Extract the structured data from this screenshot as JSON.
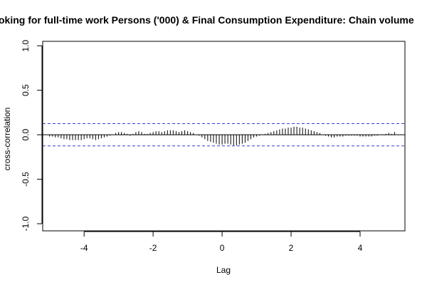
{
  "chart_data": {
    "type": "bar",
    "title": "oking for full-time work Persons ('000) & Final Consumption Expenditure: Chain volume",
    "xlabel": "Lag",
    "ylabel": "cross-correlation",
    "xlim": [
      -5.2,
      5.3
    ],
    "ylim": [
      -1.08,
      1.05
    ],
    "x_ticks": [
      -4,
      -2,
      0,
      2,
      4
    ],
    "x_tick_labels": [
      "-4",
      "-2",
      "0",
      "2",
      "4"
    ],
    "y_ticks": [
      -1.0,
      -0.5,
      0.0,
      0.5,
      1.0
    ],
    "y_tick_labels": [
      "-1.0",
      "-0.5",
      "0.0",
      "0.5",
      "1.0"
    ],
    "confidence_band": 0.125,
    "lags": [
      -5.0,
      -4.917,
      -4.833,
      -4.75,
      -4.667,
      -4.583,
      -4.5,
      -4.417,
      -4.333,
      -4.25,
      -4.167,
      -4.083,
      -4.0,
      -3.917,
      -3.833,
      -3.75,
      -3.667,
      -3.583,
      -3.5,
      -3.417,
      -3.333,
      -3.25,
      -3.167,
      -3.083,
      -3.0,
      -2.917,
      -2.833,
      -2.75,
      -2.667,
      -2.583,
      -2.5,
      -2.417,
      -2.333,
      -2.25,
      -2.167,
      -2.083,
      -2.0,
      -1.917,
      -1.833,
      -1.75,
      -1.667,
      -1.583,
      -1.5,
      -1.417,
      -1.333,
      -1.25,
      -1.167,
      -1.083,
      -1.0,
      -0.917,
      -0.833,
      -0.75,
      -0.667,
      -0.583,
      -0.5,
      -0.417,
      -0.333,
      -0.25,
      -0.167,
      -0.083,
      0.0,
      0.083,
      0.167,
      0.25,
      0.333,
      0.417,
      0.5,
      0.583,
      0.667,
      0.75,
      0.833,
      0.917,
      1.0,
      1.083,
      1.167,
      1.25,
      1.333,
      1.417,
      1.5,
      1.583,
      1.667,
      1.75,
      1.833,
      1.917,
      2.0,
      2.083,
      2.167,
      2.25,
      2.333,
      2.417,
      2.5,
      2.583,
      2.667,
      2.75,
      2.833,
      2.917,
      3.0,
      3.083,
      3.167,
      3.25,
      3.333,
      3.417,
      3.5,
      3.583,
      3.667,
      3.75,
      3.833,
      3.917,
      4.0,
      4.083,
      4.167,
      4.25,
      4.333,
      4.417,
      4.5,
      4.583,
      4.667,
      4.75,
      4.833,
      4.917,
      5.0
    ],
    "values": [
      -0.02,
      -0.02,
      -0.03,
      -0.03,
      -0.04,
      -0.05,
      -0.05,
      -0.06,
      -0.06,
      -0.06,
      -0.06,
      -0.06,
      -0.05,
      -0.04,
      -0.04,
      -0.05,
      -0.06,
      -0.05,
      -0.04,
      -0.03,
      -0.02,
      -0.01,
      0.0,
      0.02,
      0.03,
      0.03,
      0.02,
      0.01,
      -0.01,
      0.01,
      0.03,
      0.04,
      0.03,
      0.01,
      0.01,
      0.02,
      0.03,
      0.04,
      0.04,
      0.03,
      0.04,
      0.05,
      0.05,
      0.05,
      0.04,
      0.03,
      0.04,
      0.05,
      0.04,
      0.03,
      0.02,
      0.0,
      -0.01,
      -0.03,
      -0.05,
      -0.07,
      -0.08,
      -0.09,
      -0.1,
      -0.11,
      -0.11,
      -0.1,
      -0.1,
      -0.11,
      -0.12,
      -0.12,
      -0.11,
      -0.1,
      -0.09,
      -0.07,
      -0.05,
      -0.03,
      -0.02,
      -0.01,
      0.0,
      0.01,
      0.02,
      0.03,
      0.04,
      0.05,
      0.06,
      0.07,
      0.07,
      0.08,
      0.08,
      0.09,
      0.09,
      0.08,
      0.08,
      0.07,
      0.06,
      0.05,
      0.04,
      0.03,
      0.02,
      0.0,
      -0.01,
      -0.02,
      -0.03,
      -0.03,
      -0.02,
      -0.02,
      -0.02,
      -0.01,
      -0.01,
      -0.01,
      -0.01,
      -0.01,
      -0.02,
      -0.02,
      -0.02,
      -0.02,
      -0.02,
      -0.01,
      -0.01,
      0.0,
      0.0,
      0.01,
      0.02,
      0.01,
      0.03
    ]
  }
}
